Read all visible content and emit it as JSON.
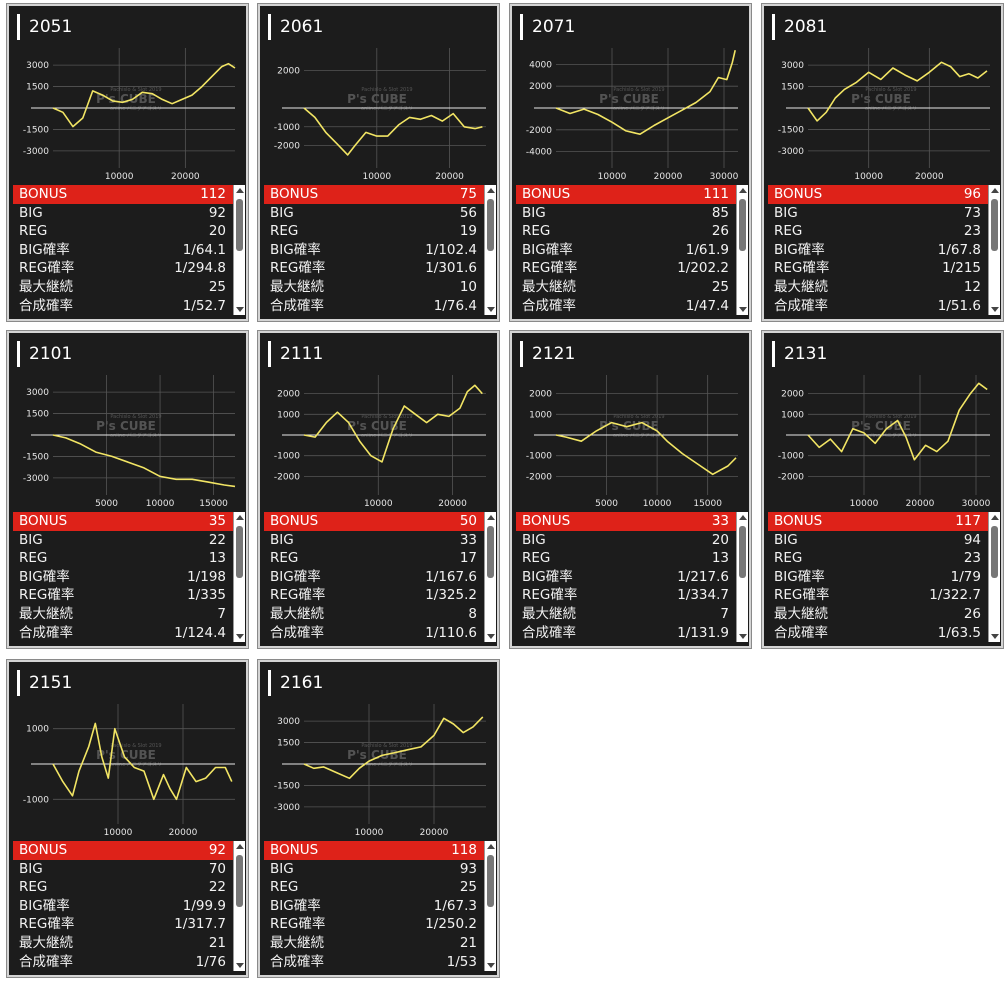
{
  "labels": {
    "bonus": "BONUS",
    "big": "BIG",
    "reg": "REG",
    "big_rate": "BIG確率",
    "reg_rate": "REG確率",
    "max_streak": "最大継続",
    "combined_rate": "合成確率"
  },
  "watermark": {
    "text": "P's CUBE",
    "top": "Pachislo & Slot 2019",
    "bottom": "online パニグアゴスリ"
  },
  "colors": {
    "card_bg": "#1c1c1c",
    "line": "#f2e564",
    "bonus_bar": "#de2219",
    "grid": "#555555"
  },
  "machines": [
    {
      "id": "2051",
      "bonus": "112",
      "big": "92",
      "reg": "20",
      "big_rate": "1/64.1",
      "reg_rate": "1/294.8",
      "max_streak": "25",
      "combined_rate": "1/52.7"
    },
    {
      "id": "2061",
      "bonus": "75",
      "big": "56",
      "reg": "19",
      "big_rate": "1/102.4",
      "reg_rate": "1/301.6",
      "max_streak": "10",
      "combined_rate": "1/76.4"
    },
    {
      "id": "2071",
      "bonus": "111",
      "big": "85",
      "reg": "26",
      "big_rate": "1/61.9",
      "reg_rate": "1/202.2",
      "max_streak": "25",
      "combined_rate": "1/47.4"
    },
    {
      "id": "2081",
      "bonus": "96",
      "big": "73",
      "reg": "23",
      "big_rate": "1/67.8",
      "reg_rate": "1/215",
      "max_streak": "12",
      "combined_rate": "1/51.6"
    },
    {
      "id": "2101",
      "bonus": "35",
      "big": "22",
      "reg": "13",
      "big_rate": "1/198",
      "reg_rate": "1/335",
      "max_streak": "7",
      "combined_rate": "1/124.4"
    },
    {
      "id": "2111",
      "bonus": "50",
      "big": "33",
      "reg": "17",
      "big_rate": "1/167.6",
      "reg_rate": "1/325.2",
      "max_streak": "8",
      "combined_rate": "1/110.6"
    },
    {
      "id": "2121",
      "bonus": "33",
      "big": "20",
      "reg": "13",
      "big_rate": "1/217.6",
      "reg_rate": "1/334.7",
      "max_streak": "7",
      "combined_rate": "1/131.9"
    },
    {
      "id": "2131",
      "bonus": "117",
      "big": "94",
      "reg": "23",
      "big_rate": "1/79",
      "reg_rate": "1/322.7",
      "max_streak": "26",
      "combined_rate": "1/63.5"
    },
    {
      "id": "2151",
      "bonus": "92",
      "big": "70",
      "reg": "22",
      "big_rate": "1/99.9",
      "reg_rate": "1/317.7",
      "max_streak": "21",
      "combined_rate": "1/76"
    },
    {
      "id": "2161",
      "bonus": "118",
      "big": "93",
      "reg": "25",
      "big_rate": "1/67.3",
      "reg_rate": "1/250.2",
      "max_streak": "21",
      "combined_rate": "1/53"
    }
  ],
  "chart_data": [
    {
      "type": "line",
      "x_ticks": [
        10000,
        20000
      ],
      "y_ticks": [
        3000,
        1500,
        -1500,
        -3000
      ],
      "xlim": [
        0,
        27500
      ],
      "ylim": [
        -4200,
        4200
      ],
      "x": [
        0,
        1500,
        3000,
        4500,
        6000,
        7500,
        9000,
        10500,
        12000,
        13500,
        15000,
        16500,
        18000,
        19500,
        21000,
        22500,
        24000,
        25500,
        26500,
        27500
      ],
      "values": [
        0,
        -300,
        -1300,
        -700,
        1200,
        900,
        500,
        400,
        600,
        1100,
        1000,
        600,
        300,
        600,
        900,
        1500,
        2200,
        2900,
        3100,
        2800
      ]
    },
    {
      "type": "line",
      "x_ticks": [
        10000,
        20000
      ],
      "y_ticks": [
        2000,
        -1000,
        -2000
      ],
      "xlim": [
        0,
        25000
      ],
      "ylim": [
        -3200,
        3200
      ],
      "x": [
        0,
        1500,
        3000,
        4500,
        6000,
        7000,
        8500,
        10000,
        11500,
        13000,
        14500,
        16000,
        17500,
        19000,
        20500,
        22000,
        23500,
        24500
      ],
      "values": [
        0,
        -500,
        -1300,
        -1900,
        -2500,
        -2000,
        -1300,
        -1500,
        -1500,
        -900,
        -500,
        -600,
        -400,
        -700,
        -300,
        -1000,
        -1100,
        -1000
      ]
    },
    {
      "type": "line",
      "x_ticks": [
        10000,
        20000,
        30000
      ],
      "y_ticks": [
        4000,
        2000,
        -2000,
        -4000
      ],
      "xlim": [
        0,
        32500
      ],
      "ylim": [
        -5500,
        5500
      ],
      "x": [
        0,
        2500,
        5000,
        7500,
        10000,
        12500,
        15000,
        17500,
        20000,
        22500,
        25000,
        27500,
        29000,
        30500,
        31500,
        32000
      ],
      "values": [
        0,
        -500,
        -100,
        -600,
        -1300,
        -2100,
        -2400,
        -1600,
        -900,
        -200,
        500,
        1500,
        2800,
        2600,
        4200,
        5300
      ]
    },
    {
      "type": "line",
      "x_ticks": [
        10000,
        20000
      ],
      "y_ticks": [
        3000,
        1500,
        -1500,
        -3000
      ],
      "xlim": [
        0,
        30000
      ],
      "ylim": [
        -4200,
        4200
      ],
      "x": [
        0,
        1500,
        3000,
        4500,
        6000,
        8000,
        10000,
        12000,
        14000,
        16000,
        18000,
        20000,
        22000,
        23500,
        25000,
        26500,
        28000,
        29500
      ],
      "values": [
        0,
        -900,
        -300,
        700,
        1300,
        1800,
        2500,
        2000,
        2800,
        2300,
        1900,
        2500,
        3200,
        2900,
        2200,
        2400,
        2100,
        2600
      ]
    },
    {
      "type": "line",
      "x_ticks": [
        5000,
        10000,
        15000
      ],
      "y_ticks": [
        3000,
        1500,
        -1500,
        -3000
      ],
      "xlim": [
        0,
        17000
      ],
      "ylim": [
        -4200,
        4200
      ],
      "x": [
        0,
        1200,
        2500,
        4000,
        5500,
        7000,
        8500,
        10000,
        11500,
        13000,
        14500,
        16000,
        17000
      ],
      "values": [
        0,
        -200,
        -600,
        -1200,
        -1500,
        -1900,
        -2300,
        -2900,
        -3100,
        -3100,
        -3300,
        -3500,
        -3600
      ]
    },
    {
      "type": "line",
      "x_ticks": [
        10000,
        20000
      ],
      "y_ticks": [
        2000,
        1000,
        -1000,
        -2000
      ],
      "xlim": [
        0,
        24500
      ],
      "ylim": [
        -2900,
        2900
      ],
      "x": [
        0,
        1500,
        3000,
        4500,
        6000,
        7500,
        9000,
        10500,
        12000,
        13500,
        15000,
        16500,
        18000,
        19500,
        21000,
        22000,
        23000,
        24000
      ],
      "values": [
        0,
        -100,
        600,
        1100,
        600,
        -300,
        -1000,
        -1300,
        300,
        1400,
        1000,
        600,
        1000,
        900,
        1300,
        2100,
        2400,
        2000
      ]
    },
    {
      "type": "line",
      "x_ticks": [
        5000,
        10000,
        15000
      ],
      "y_ticks": [
        2000,
        1000,
        -1000,
        -2000
      ],
      "xlim": [
        0,
        18000
      ],
      "ylim": [
        -2900,
        2900
      ],
      "x": [
        0,
        1000,
        2500,
        4000,
        5500,
        7000,
        8500,
        10000,
        11000,
        12500,
        14000,
        15500,
        17000,
        17800
      ],
      "values": [
        0,
        -100,
        -300,
        200,
        600,
        400,
        600,
        200,
        -300,
        -900,
        -1400,
        -1900,
        -1500,
        -1100
      ]
    },
    {
      "type": "line",
      "x_ticks": [
        10000,
        20000,
        30000
      ],
      "y_ticks": [
        2000,
        1000,
        -1000,
        -2000
      ],
      "xlim": [
        0,
        32500
      ],
      "ylim": [
        -2900,
        2900
      ],
      "x": [
        0,
        2000,
        4000,
        6000,
        8000,
        10000,
        12000,
        14000,
        16000,
        17500,
        19000,
        21000,
        23000,
        25000,
        27000,
        29000,
        30500,
        32000
      ],
      "values": [
        0,
        -600,
        -200,
        -800,
        300,
        100,
        -400,
        300,
        700,
        -100,
        -1200,
        -500,
        -800,
        -300,
        1200,
        2000,
        2500,
        2200
      ]
    },
    {
      "type": "line",
      "x_ticks": [
        10000,
        20000
      ],
      "y_ticks": [
        1000,
        -1000
      ],
      "xlim": [
        0,
        28000
      ],
      "ylim": [
        -1700,
        1700
      ],
      "x": [
        0,
        1500,
        3000,
        4000,
        5500,
        6500,
        7500,
        8500,
        9500,
        11000,
        12500,
        14000,
        15500,
        17000,
        18000,
        19000,
        20500,
        22000,
        23500,
        25000,
        26500,
        27500
      ],
      "values": [
        0,
        -500,
        -900,
        -200,
        500,
        1150,
        200,
        -400,
        1000,
        200,
        -100,
        -200,
        -1000,
        -300,
        -700,
        -1000,
        -100,
        -500,
        -400,
        -100,
        -100,
        -500
      ]
    },
    {
      "type": "line",
      "x_ticks": [
        10000,
        20000
      ],
      "y_ticks": [
        3000,
        1500,
        -1500,
        -3000
      ],
      "xlim": [
        0,
        28000
      ],
      "ylim": [
        -4200,
        4200
      ],
      "x": [
        0,
        1500,
        3000,
        5000,
        7000,
        8500,
        10000,
        12000,
        14000,
        16000,
        18000,
        20000,
        21500,
        23000,
        24500,
        26000,
        27500
      ],
      "values": [
        0,
        -300,
        -200,
        -600,
        -1000,
        -300,
        200,
        600,
        800,
        1000,
        1200,
        2000,
        3200,
        2800,
        2200,
        2600,
        3300
      ]
    }
  ]
}
